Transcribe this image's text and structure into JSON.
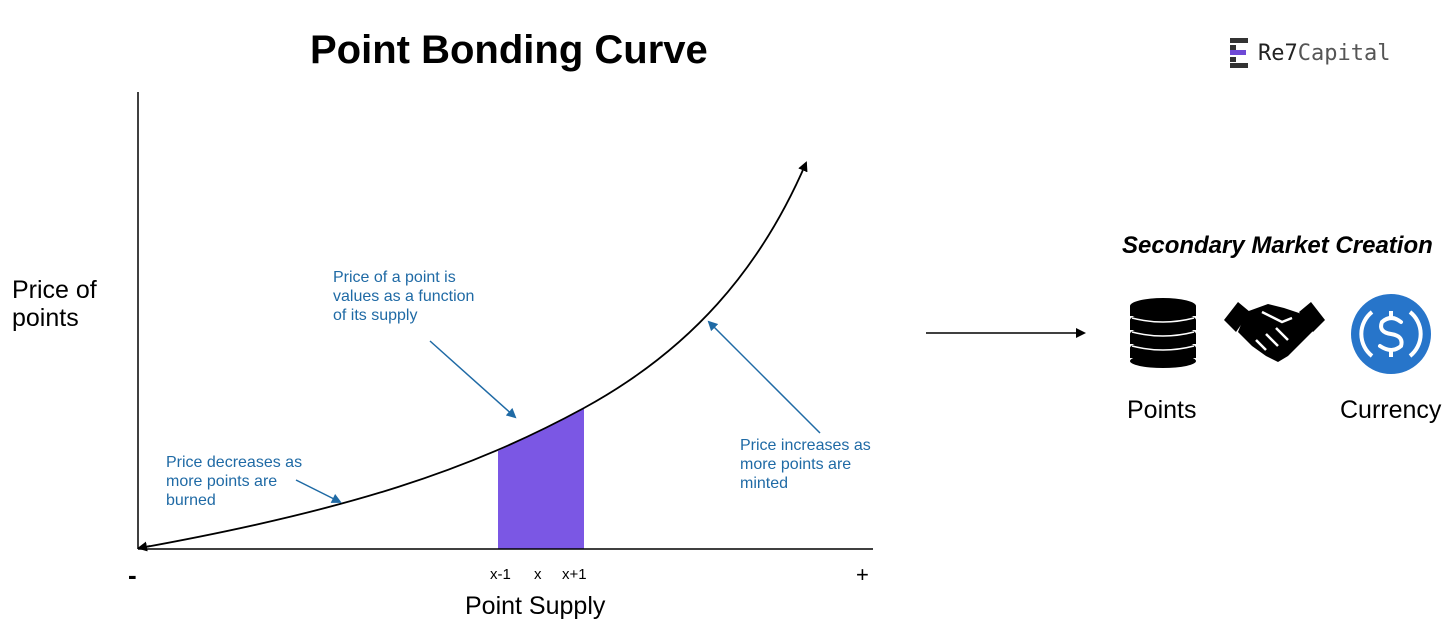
{
  "title": "Point Bonding Curve",
  "logo": {
    "text_a": "Re7",
    "text_b": "Capital",
    "icon": "re7-logo-icon"
  },
  "axis": {
    "y_label": "Price of points",
    "x_label": "Point Supply",
    "x_min_label": "-",
    "x_max_label": "+",
    "ticks": [
      "x-1",
      "x",
      "x+1"
    ]
  },
  "annotations": {
    "value": "Price of a point is values as a function of its supply",
    "decrease": "Price decreases as more points are burned",
    "increase": "Price increases as more points are minted"
  },
  "secondary": {
    "title": "Secondary Market Creation",
    "points_label": "Points",
    "currency_label": "Currency",
    "icons": [
      "coin-stack-icon",
      "handshake-icon",
      "usdc-icon"
    ]
  },
  "colors": {
    "annotation": "#1f6aa5",
    "area": "#7b57e4",
    "usdc": "#2775ca"
  }
}
